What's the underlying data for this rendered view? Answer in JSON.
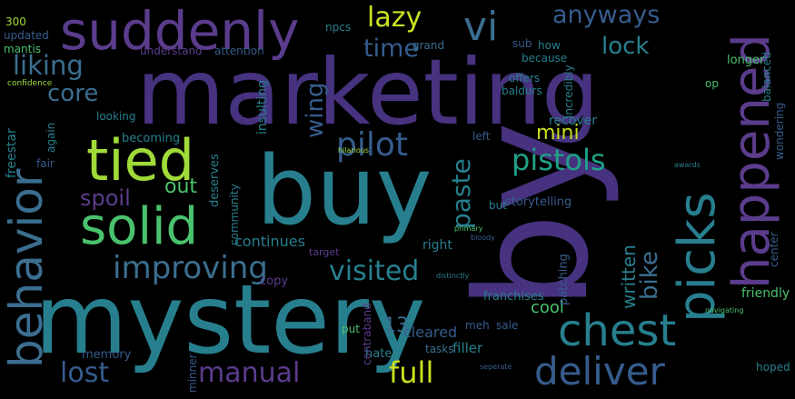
{
  "palette": {
    "background": "#000000",
    "purple": "#46327e",
    "violet": "#5b3c8c",
    "blue": "#365c8d",
    "steel": "#3b6e8f",
    "teal": "#277f8e",
    "cyan": "#1fa187",
    "green": "#4ac16d",
    "lime": "#a0da39",
    "yellow": "#c9e020"
  },
  "words": [
    "marketing",
    "mystery",
    "buy",
    "by",
    "happened",
    "suddenly",
    "tied",
    "solid",
    "behavior",
    "chest",
    "picks",
    "deliver",
    "pilot",
    "pistols",
    "improving",
    "visited",
    "vi",
    "anyways",
    "lock",
    "lazy",
    "liking",
    "core",
    "time",
    "spoil",
    "paste",
    "wing",
    "bike",
    "full",
    "manual",
    "lost",
    "mini",
    "written",
    "out",
    "continues",
    "13",
    "cool",
    "copy",
    "right",
    "cleared",
    "hate",
    "filler",
    "sale",
    "tasks",
    "memory",
    "becoming",
    "deserves",
    "insulting",
    "community",
    "recover",
    "friendly",
    "center",
    "balanced",
    "wondering",
    "longer",
    "op",
    "hoped",
    "freestar",
    "fair",
    "again",
    "looking",
    "300",
    "updated",
    "mantis",
    "attention",
    "understand",
    "npcs",
    "grand",
    "sub",
    "how",
    "because",
    "offers",
    "baldurs",
    "incredibly",
    "left",
    "but",
    "storytelling",
    "franchises",
    "patching",
    "meh",
    "put",
    "contraband",
    "minner",
    "target",
    "confidence",
    "hilarious",
    "distinctly",
    "seperate",
    "navigating",
    "primary",
    "bloody",
    "awards"
  ]
}
